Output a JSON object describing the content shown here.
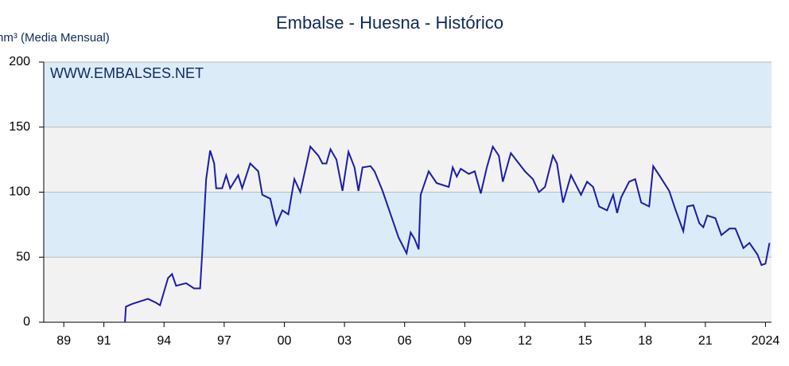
{
  "chart_data": {
    "type": "line",
    "title": "Embalse - Huesna - Histórico",
    "y_label": "hm³ (Media Mensual)",
    "annotation": "WWW.EMBALSES.NET",
    "xlim": [
      1988,
      2024.3
    ],
    "xticks": [
      {
        "value": 1989,
        "label": "89"
      },
      {
        "value": 1991,
        "label": "91"
      },
      {
        "value": 1994,
        "label": "94"
      },
      {
        "value": 1997,
        "label": "97"
      },
      {
        "value": 2000,
        "label": "00"
      },
      {
        "value": 2003,
        "label": "03"
      },
      {
        "value": 2006,
        "label": "06"
      },
      {
        "value": 2009,
        "label": "09"
      },
      {
        "value": 2012,
        "label": "12"
      },
      {
        "value": 2015,
        "label": "15"
      },
      {
        "value": 2018,
        "label": "18"
      },
      {
        "value": 2021,
        "label": "21"
      },
      {
        "value": 2024,
        "label": "2024"
      }
    ],
    "ylim": [
      0,
      200
    ],
    "yticks": [
      0,
      50,
      100,
      150,
      200
    ],
    "grid": true,
    "band_colors": [
      "#f2f2f2",
      "#dcebf8"
    ],
    "series": [
      {
        "color": "#1c1ca8",
        "x": [
          1992.05,
          1992.1,
          1992.4,
          1992.8,
          1993.2,
          1993.6,
          1993.8,
          1994.2,
          1994.4,
          1994.6,
          1995.1,
          1995.5,
          1995.8,
          1995.9,
          1996.1,
          1996.3,
          1996.5,
          1996.6,
          1996.9,
          1997.1,
          1997.3,
          1997.7,
          1997.9,
          1998.3,
          1998.7,
          1998.9,
          1999.3,
          1999.6,
          1999.9,
          2000.2,
          2000.5,
          2000.8,
          2001.3,
          2001.7,
          2001.9,
          2002.1,
          2002.3,
          2002.6,
          2002.9,
          2003.2,
          2003.5,
          2003.7,
          2003.9,
          2004.3,
          2004.5,
          2004.9,
          2005.3,
          2005.7,
          2006.1,
          2006.3,
          2006.5,
          2006.7,
          2006.8,
          2007.2,
          2007.6,
          2008.2,
          2008.4,
          2008.6,
          2008.8,
          2009.2,
          2009.5,
          2009.8,
          2010.1,
          2010.4,
          2010.7,
          2010.9,
          2011.3,
          2011.7,
          2012.0,
          2012.4,
          2012.7,
          2013.0,
          2013.4,
          2013.6,
          2013.9,
          2014.3,
          2014.8,
          2015.1,
          2015.4,
          2015.7,
          2016.1,
          2016.4,
          2016.6,
          2016.8,
          2017.2,
          2017.5,
          2017.8,
          2018.2,
          2018.4,
          2018.7,
          2019.2,
          2019.5,
          2019.9,
          2020.1,
          2020.4,
          2020.7,
          2020.9,
          2021.1,
          2021.5,
          2021.8,
          2022.2,
          2022.5,
          2022.9,
          2023.2,
          2023.6,
          2023.8,
          2024.0,
          2024.2
        ],
        "values": [
          0,
          12,
          14,
          16,
          18,
          15,
          13,
          34,
          37,
          28,
          30,
          26,
          26,
          52,
          110,
          132,
          122,
          103,
          103,
          113,
          103,
          113,
          103,
          122,
          116,
          98,
          95,
          75,
          86,
          83,
          110,
          100,
          135,
          128,
          122,
          122,
          133,
          125,
          101,
          131,
          119,
          101,
          119,
          120,
          116,
          101,
          83,
          65,
          53,
          69,
          64,
          56,
          98,
          116,
          107,
          104,
          119,
          112,
          118,
          114,
          116,
          99,
          119,
          135,
          128,
          108,
          130,
          122,
          116,
          110,
          100,
          104,
          128,
          122,
          92,
          113,
          98,
          108,
          104,
          89,
          86,
          98,
          84,
          96,
          108,
          110,
          92,
          89,
          120,
          113,
          101,
          87,
          70,
          89,
          90,
          76,
          73,
          82,
          80,
          67,
          72,
          72,
          57,
          61,
          52,
          44,
          45,
          61
        ]
      }
    ]
  }
}
